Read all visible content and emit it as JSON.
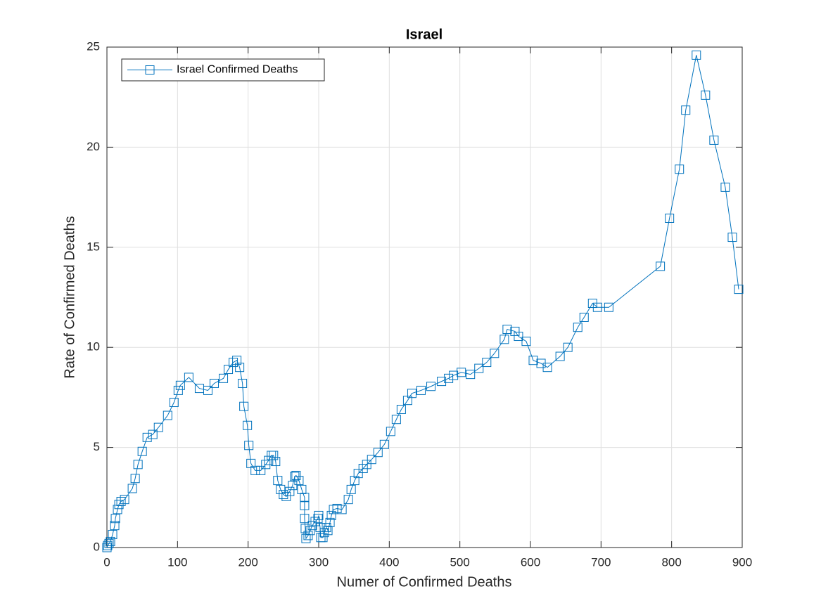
{
  "chart_data": {
    "type": "line",
    "title": "Israel",
    "xlabel": "Numer of Confirmed Deaths",
    "ylabel": "Rate of Confirmed Deaths",
    "xlim": [
      0,
      900
    ],
    "ylim": [
      0,
      25
    ],
    "xticks": [
      0,
      100,
      200,
      300,
      400,
      500,
      600,
      700,
      800,
      900
    ],
    "yticks": [
      0,
      5,
      10,
      15,
      20,
      25
    ],
    "grid": true,
    "legend": "upper-left",
    "marker": "square",
    "x": [
      0,
      1,
      3,
      5,
      8,
      11,
      12,
      15,
      17,
      20,
      25,
      36,
      40,
      44,
      50,
      57,
      65,
      73,
      86,
      95,
      101,
      104,
      116,
      131,
      143,
      152,
      165,
      172,
      179,
      184,
      188,
      192,
      194,
      199,
      201,
      204,
      210,
      218,
      225,
      229,
      233,
      236,
      239,
      242,
      246,
      250,
      254,
      259,
      263,
      266,
      268,
      272,
      276,
      280,
      280,
      280,
      281,
      282,
      285,
      288,
      291,
      295,
      299,
      300,
      302,
      303,
      306,
      308,
      311,
      313,
      316,
      318,
      321,
      326,
      333,
      342,
      346,
      351,
      356,
      363,
      368,
      375,
      384,
      393,
      402,
      410,
      417,
      426,
      432,
      445,
      459,
      474,
      484,
      491,
      502,
      515,
      527,
      538,
      549,
      563,
      567,
      578,
      583,
      594,
      604,
      615,
      624,
      642,
      653,
      667,
      676,
      688,
      695,
      711,
      784,
      797,
      811,
      820,
      835,
      848,
      860,
      876,
      886,
      895
    ],
    "series": [
      {
        "name": "Israel Confirmed Deaths",
        "color": "#0072bd",
        "values": [
          0,
          0.1,
          0.2,
          0.3,
          0.65,
          1.1,
          1.45,
          1.9,
          2.15,
          2.3,
          2.4,
          2.95,
          3.45,
          4.15,
          4.8,
          5.5,
          5.65,
          6.0,
          6.6,
          7.25,
          7.85,
          8.1,
          8.5,
          7.95,
          7.85,
          8.2,
          8.45,
          8.9,
          9.25,
          9.35,
          9.0,
          8.2,
          7.05,
          6.1,
          5.1,
          4.2,
          3.85,
          3.85,
          4.15,
          4.35,
          4.6,
          4.6,
          4.3,
          3.35,
          2.9,
          2.65,
          2.55,
          2.8,
          3.1,
          3.55,
          3.6,
          3.35,
          2.9,
          2.5,
          2.1,
          1.45,
          0.95,
          0.45,
          0.6,
          0.85,
          1.1,
          1.3,
          1.45,
          1.6,
          1.0,
          0.5,
          0.5,
          0.75,
          1.0,
          0.85,
          1.25,
          1.6,
          1.9,
          1.95,
          1.9,
          2.4,
          2.9,
          3.35,
          3.7,
          3.95,
          4.15,
          4.4,
          4.75,
          5.15,
          5.8,
          6.4,
          6.9,
          7.35,
          7.7,
          7.85,
          8.05,
          8.3,
          8.45,
          8.6,
          8.75,
          8.65,
          8.95,
          9.25,
          9.7,
          10.4,
          10.9,
          10.8,
          10.55,
          10.3,
          9.35,
          9.2,
          9.0,
          9.55,
          10.0,
          11.0,
          11.5,
          12.2,
          12.0,
          12.0,
          14.05,
          16.45,
          18.9,
          21.85,
          24.6,
          22.6,
          20.35,
          18.0,
          15.5,
          12.9
        ]
      }
    ]
  }
}
